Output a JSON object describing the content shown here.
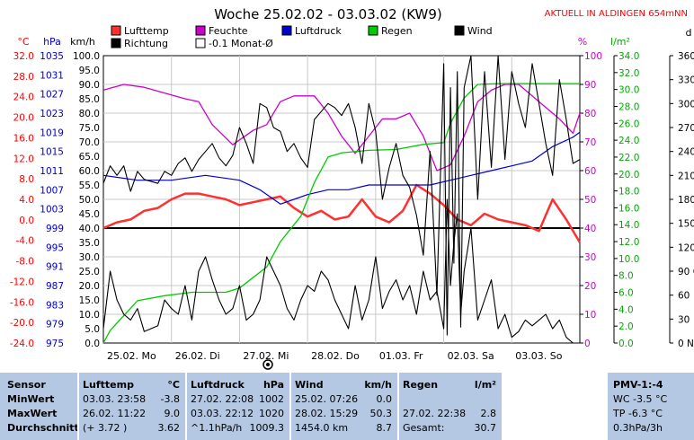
{
  "title": "Woche 25.02.02 - 03.03.02 (KW9)",
  "current_label": "AKTUELL IN ALDINGEN 654mNN",
  "colors": {
    "temp": "#ff3030",
    "hum": "#cc00cc",
    "press": "#0000cc",
    "rain": "#00cc00",
    "wind": "#000000",
    "dir": "#000000",
    "grid": "#c8c8c8"
  },
  "units": {
    "temp": "°C",
    "press": "hPa",
    "wind": "km/h",
    "hum": "%",
    "rain": "l/m²",
    "dir": "d"
  },
  "legend": [
    {
      "label": "Lufttemp",
      "color": "#ff3030",
      "style": "fill"
    },
    {
      "label": "Feuchte",
      "color": "#cc00cc",
      "style": "fill"
    },
    {
      "label": "Luftdruck",
      "color": "#0000cc",
      "style": "fill"
    },
    {
      "label": "Regen",
      "color": "#00cc00",
      "style": "fill"
    },
    {
      "label": "Wind",
      "color": "#000000",
      "style": "fill"
    },
    {
      "label": "Richtung",
      "color": "#000000",
      "style": "fill"
    },
    {
      "label": "-0.1 Monat-Ø",
      "color": "#000000",
      "style": "open"
    }
  ],
  "chart_data": {
    "type": "line",
    "x_tick_labels": [
      "25.02. Mo",
      "26.02. Di",
      "27.02. Mi",
      "28.02. Do",
      "01.03. Fr",
      "02.03. Sa",
      "03.03. So"
    ],
    "xlim": [
      0,
      7
    ],
    "axes": {
      "temp": {
        "ticks": [
          "32.0",
          "28.0",
          "24.0",
          "20.0",
          "16.0",
          "12.0",
          "8.0",
          "4.0",
          "0.0",
          "-4.0",
          "-8.0",
          "-12.0",
          "-16.0",
          "-20.0",
          "-24.0"
        ],
        "lim": [
          -24,
          32
        ]
      },
      "press": {
        "ticks": [
          "1035",
          "1031",
          "1027",
          "1023",
          "1019",
          "1015",
          "1011",
          "1007",
          "1003",
          "999",
          "995",
          "991",
          "987",
          "983",
          "979",
          "975"
        ],
        "lim": [
          975,
          1035
        ]
      },
      "wind": {
        "ticks": [
          "100.0",
          "95.0",
          "90.0",
          "85.0",
          "80.0",
          "75.0",
          "70.0",
          "65.0",
          "60.0",
          "55.0",
          "50.0",
          "45.0",
          "40.0",
          "35.0",
          "30.0",
          "25.0",
          "20.0",
          "15.0",
          "10.0",
          "5.0",
          "0.0"
        ],
        "lim": [
          0,
          100
        ]
      },
      "hum": {
        "ticks": [
          "100",
          "90",
          "80",
          "70",
          "60",
          "50",
          "40",
          "30",
          "20",
          "10",
          "0"
        ],
        "lim": [
          0,
          100
        ]
      },
      "rain": {
        "ticks": [
          "34.0",
          "32.0",
          "30.0",
          "28.0",
          "26.0",
          "24.0",
          "22.0",
          "20.0",
          "18.0",
          "16.0",
          "14.0",
          "12.0",
          "10.0",
          "8.0",
          "6.0",
          "4.0",
          "2.0",
          "0.0"
        ],
        "lim": [
          0,
          34
        ]
      },
      "dir": {
        "ticks": [
          "360 N",
          "330",
          "300",
          "270 W",
          "240",
          "210",
          "180 S",
          "150",
          "120",
          "90 O",
          "60",
          "30",
          "0 N"
        ],
        "lim": [
          0,
          360
        ]
      }
    },
    "reference_line": {
      "wind_value": 40
    },
    "series": [
      {
        "name": "Lufttemp",
        "axis": "wind",
        "color": "#ff3030",
        "x": [
          0,
          0.2,
          0.4,
          0.6,
          0.8,
          1.0,
          1.2,
          1.4,
          1.6,
          1.8,
          2.0,
          2.2,
          2.4,
          2.6,
          2.8,
          3.0,
          3.2,
          3.4,
          3.6,
          3.8,
          4.0,
          4.2,
          4.4,
          4.6,
          4.8,
          5.0,
          5.2,
          5.4,
          5.6,
          5.8,
          6.0,
          6.2,
          6.4,
          6.6,
          6.8,
          7.0
        ],
        "y": [
          40,
          42,
          43,
          46,
          47,
          50,
          52,
          52,
          51,
          50,
          48,
          49,
          50,
          51,
          47,
          44,
          46,
          43,
          44,
          50,
          44,
          42,
          46,
          55,
          52,
          48,
          43,
          41,
          45,
          43,
          42,
          41,
          39,
          50,
          43,
          35
        ]
      },
      {
        "name": "Feuchte",
        "axis": "hum",
        "color": "#cc00cc",
        "x": [
          0,
          0.3,
          0.6,
          0.9,
          1.2,
          1.4,
          1.6,
          1.9,
          2.2,
          2.4,
          2.6,
          2.8,
          3.1,
          3.3,
          3.5,
          3.7,
          3.9,
          4.1,
          4.3,
          4.5,
          4.7,
          4.9,
          5.1,
          5.3,
          5.5,
          5.7,
          5.9,
          6.1,
          6.3,
          6.5,
          6.7,
          6.9,
          7.0
        ],
        "y": [
          88,
          90,
          89,
          87,
          85,
          84,
          76,
          69,
          74,
          76,
          84,
          86,
          86,
          80,
          72,
          66,
          72,
          78,
          78,
          80,
          72,
          60,
          62,
          72,
          84,
          88,
          90,
          90,
          86,
          82,
          78,
          73,
          80
        ]
      },
      {
        "name": "Luftdruck",
        "axis": "press",
        "color": "#0000cc",
        "x": [
          0,
          0.5,
          1.0,
          1.5,
          2.0,
          2.3,
          2.6,
          2.8,
          3.0,
          3.3,
          3.6,
          3.9,
          4.2,
          4.5,
          4.8,
          5.1,
          5.4,
          5.7,
          6.0,
          6.3,
          6.6,
          6.9,
          7.0
        ],
        "y": [
          1010,
          1009,
          1009,
          1010,
          1009,
          1007,
          1004,
          1005,
          1006,
          1007,
          1007,
          1008,
          1008,
          1008,
          1008,
          1009,
          1010,
          1011,
          1012,
          1013,
          1016,
          1018,
          1019
        ]
      },
      {
        "name": "Regen",
        "axis": "rain",
        "color": "#00cc00",
        "x": [
          0,
          0.1,
          0.5,
          0.9,
          1.3,
          1.8,
          2.0,
          2.4,
          2.6,
          2.9,
          3.1,
          3.3,
          3.5,
          3.9,
          4.3,
          4.7,
          5.0,
          5.1,
          5.3,
          5.5,
          5.8,
          6.0,
          6.3,
          7.0
        ],
        "y": [
          0,
          1.5,
          5,
          5.6,
          6.0,
          6.0,
          6.5,
          9,
          12,
          15,
          19,
          22,
          22.5,
          22.8,
          22.9,
          23.5,
          23.7,
          26,
          29,
          30.6,
          30.7,
          30.7,
          30.7,
          30.7
        ]
      },
      {
        "name": "Wind",
        "axis": "wind",
        "color": "#000000",
        "x": [
          0,
          0.1,
          0.2,
          0.3,
          0.4,
          0.5,
          0.6,
          0.8,
          0.9,
          1.0,
          1.1,
          1.2,
          1.3,
          1.4,
          1.5,
          1.6,
          1.7,
          1.8,
          1.9,
          2.0,
          2.1,
          2.2,
          2.3,
          2.4,
          2.5,
          2.6,
          2.7,
          2.8,
          2.9,
          3.0,
          3.1,
          3.2,
          3.3,
          3.4,
          3.5,
          3.6,
          3.7,
          3.8,
          3.9,
          4.0,
          4.1,
          4.2,
          4.3,
          4.4,
          4.5,
          4.6,
          4.7,
          4.8,
          4.9,
          5.0,
          5.05,
          5.1,
          5.15,
          5.2,
          5.25,
          5.3,
          5.4,
          5.5,
          5.6,
          5.7,
          5.8,
          5.9,
          6.0,
          6.1,
          6.2,
          6.3,
          6.4,
          6.5,
          6.6,
          6.7,
          6.8,
          6.9,
          7.0
        ],
        "y": [
          5,
          25,
          15,
          10,
          8,
          12,
          4,
          6,
          15,
          12,
          10,
          20,
          8,
          25,
          30,
          22,
          15,
          10,
          12,
          20,
          8,
          10,
          15,
          30,
          25,
          20,
          12,
          8,
          15,
          20,
          18,
          25,
          22,
          15,
          10,
          5,
          20,
          8,
          15,
          30,
          12,
          18,
          22,
          15,
          20,
          10,
          25,
          15,
          18,
          5,
          50,
          20,
          35,
          45,
          10,
          25,
          40,
          8,
          15,
          22,
          5,
          10,
          2,
          4,
          8,
          6,
          8,
          10,
          5,
          8,
          2,
          0,
          0
        ]
      },
      {
        "name": "Richtung",
        "axis": "dir",
        "color": "#000000",
        "x": [
          0,
          0.1,
          0.2,
          0.3,
          0.4,
          0.5,
          0.6,
          0.8,
          0.9,
          1.0,
          1.1,
          1.2,
          1.3,
          1.4,
          1.5,
          1.6,
          1.7,
          1.8,
          1.9,
          2.0,
          2.1,
          2.2,
          2.3,
          2.4,
          2.5,
          2.6,
          2.7,
          2.8,
          2.9,
          3.0,
          3.1,
          3.2,
          3.3,
          3.4,
          3.5,
          3.6,
          3.7,
          3.8,
          3.9,
          4.0,
          4.1,
          4.2,
          4.3,
          4.4,
          4.5,
          4.6,
          4.7,
          4.8,
          4.9,
          5.0,
          5.05,
          5.1,
          5.15,
          5.2,
          5.25,
          5.3,
          5.4,
          5.5,
          5.6,
          5.7,
          5.8,
          5.9,
          6.0,
          6.1,
          6.2,
          6.3,
          6.4,
          6.5,
          6.6,
          6.7,
          6.8,
          6.9,
          7.0
        ],
        "y": [
          200,
          222,
          210,
          222,
          190,
          215,
          205,
          200,
          215,
          210,
          225,
          232,
          215,
          230,
          240,
          250,
          232,
          222,
          235,
          270,
          250,
          225,
          300,
          295,
          270,
          265,
          240,
          250,
          232,
          220,
          280,
          290,
          300,
          295,
          285,
          300,
          270,
          225,
          300,
          265,
          180,
          220,
          250,
          210,
          195,
          160,
          110,
          240,
          60,
          350,
          10,
          320,
          100,
          340,
          20,
          320,
          360,
          180,
          340,
          220,
          360,
          230,
          340,
          300,
          270,
          350,
          300,
          250,
          210,
          330,
          280,
          225,
          230
        ]
      }
    ]
  },
  "summary": {
    "sensor": {
      "title": "Sensor",
      "rows": [
        "MinWert",
        "MaxWert",
        "Durchschnitt"
      ]
    },
    "temp": {
      "title": "Lufttemp",
      "unit": "°C",
      "rows": [
        [
          "03.03.  23:58",
          "-3.8"
        ],
        [
          "26.02.  11:22",
          "9.0"
        ],
        [
          "(+ 3.72 )",
          "3.62"
        ]
      ]
    },
    "press": {
      "title": "Luftdruck",
      "unit": "hPa",
      "rows": [
        [
          "27.02.  22:08",
          "1002"
        ],
        [
          "03.03.  22:12",
          "1020"
        ],
        [
          "^1.1hPa/h",
          "1009.3"
        ]
      ]
    },
    "wind": {
      "title": "Wind",
      "unit": "km/h",
      "rows": [
        [
          "25.02.  07:26",
          "0.0"
        ],
        [
          "28.02.  15:29",
          "50.3"
        ],
        [
          "1454.0 km",
          "8.7"
        ]
      ]
    },
    "rain": {
      "title": "Regen",
      "unit": "l/m²",
      "rows": [
        [
          "",
          ""
        ],
        [
          "27.02.  22:38",
          "2.8"
        ],
        [
          "Gesamt:",
          "30.7"
        ]
      ]
    },
    "pmv": {
      "title": "PMV-1:-4",
      "rows": [
        "WC -3.5 °C",
        "TP -6.3 °C",
        "0.3hPa/3h"
      ]
    }
  }
}
